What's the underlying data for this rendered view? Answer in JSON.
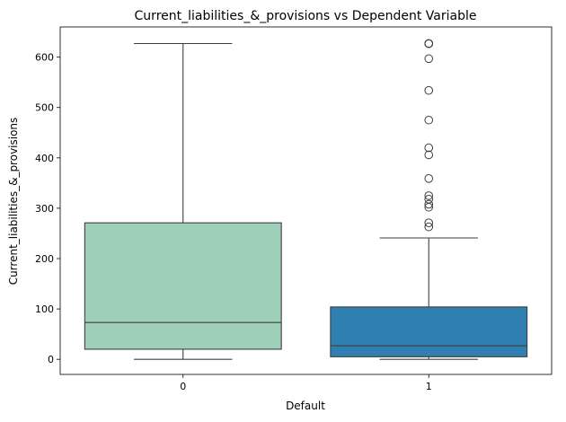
{
  "chart_data": {
    "type": "box",
    "title": "Current_liabilities_&_provisions vs Dependent Variable",
    "xlabel": "Default",
    "ylabel": "Current_liabilities_&_provisions",
    "ylim": [
      -30,
      660
    ],
    "yticks": [
      0,
      100,
      200,
      300,
      400,
      500,
      600
    ],
    "grid": false,
    "categories": [
      "0",
      "1"
    ],
    "boxes": [
      {
        "category": "0",
        "color": "#9ecfb8",
        "whisker_low": 0,
        "q1": 20,
        "median": 73,
        "q3": 271,
        "whisker_high": 627,
        "outliers": []
      },
      {
        "category": "1",
        "color": "#2f7fb0",
        "whisker_low": 0,
        "q1": 5,
        "median": 27,
        "q3": 104,
        "whisker_high": 241,
        "outliers": [
          627,
          627,
          627,
          627,
          597,
          534,
          475,
          420,
          406,
          359,
          325,
          318,
          308,
          302,
          271,
          263
        ]
      }
    ]
  }
}
